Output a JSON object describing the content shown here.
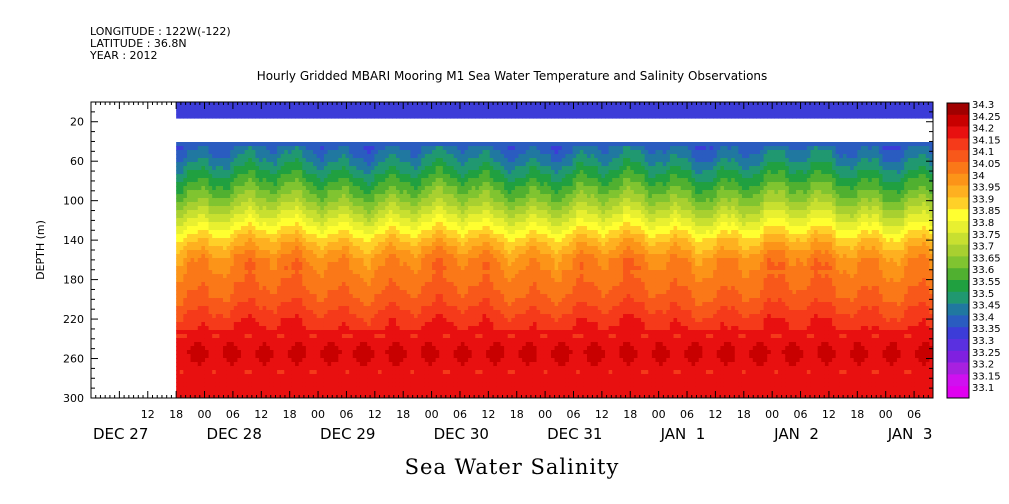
{
  "header": {
    "longitude": "LONGITUDE : 122W(-122)",
    "latitude": "LATITUDE : 36.8N",
    "year": "YEAR : 2012"
  },
  "chart_data": {
    "type": "heatmap",
    "title": "Hourly Gridded MBARI Mooring M1 Sea Water Temperature and Salinity Observations",
    "variable_title": "Sea Water Salinity",
    "ylabel": "DEPTH (m)",
    "y_axis": {
      "range": [
        0,
        300
      ],
      "inverted": true,
      "ticks": [
        20,
        60,
        100,
        140,
        180,
        220,
        260,
        300
      ]
    },
    "x_axis": {
      "hour_ticks": [
        "12",
        "18",
        "00",
        "06",
        "12",
        "18",
        "00",
        "06",
        "12",
        "18",
        "00",
        "06",
        "12",
        "18",
        "00",
        "06",
        "12",
        "18",
        "00",
        "06",
        "12",
        "18",
        "00",
        "06",
        "12",
        "18",
        "00",
        "06"
      ],
      "hour_tick_hours": [
        12,
        18,
        24,
        30,
        36,
        42,
        48,
        54,
        60,
        66,
        72,
        78,
        84,
        90,
        96,
        102,
        108,
        114,
        120,
        126,
        132,
        138,
        144,
        150,
        156,
        162,
        168,
        174
      ],
      "day_labels": [
        {
          "text": "DEC 27",
          "hour": 0
        },
        {
          "text": "DEC 28",
          "hour": 24
        },
        {
          "text": "DEC 29",
          "hour": 48
        },
        {
          "text": "DEC 30",
          "hour": 72
        },
        {
          "text": "DEC 31",
          "hour": 96
        },
        {
          "text": "JAN  1",
          "hour": 120
        },
        {
          "text": "JAN  2",
          "hour": 144
        },
        {
          "text": "JAN  3",
          "hour": 168
        }
      ],
      "data_start_hour": 18,
      "range_hours": [
        0,
        178
      ]
    },
    "colorbar": {
      "levels": [
        "34.3",
        "34.25",
        "34.2",
        "34.15",
        "34.1",
        "34.05",
        "34",
        "33.95",
        "33.9",
        "33.85",
        "33.8",
        "33.75",
        "33.7",
        "33.65",
        "33.6",
        "33.55",
        "33.5",
        "33.45",
        "33.4",
        "33.35",
        "33.3",
        "33.25",
        "33.2",
        "33.15",
        "33.1"
      ],
      "colors": [
        "#a00000",
        "#c80000",
        "#e81010",
        "#f53a1a",
        "#f8581a",
        "#fa7818",
        "#fc9418",
        "#feb020",
        "#ffd028",
        "#ffff30",
        "#e8f030",
        "#c8e030",
        "#a8d030",
        "#80c430",
        "#50b030",
        "#20a040",
        "#209870",
        "#2078a0",
        "#2a5cc0",
        "#3c3cd8",
        "#5a30e0",
        "#8020e0",
        "#a820e0",
        "#d010f0",
        "#e000f0"
      ]
    },
    "profile": [
      {
        "depth": 12,
        "salinity": 33.35
      },
      {
        "depth": 40,
        "salinity": 33.42
      },
      {
        "depth": 60,
        "salinity": 33.5
      },
      {
        "depth": 80,
        "salinity": 33.6
      },
      {
        "depth": 100,
        "salinity": 33.7
      },
      {
        "depth": 120,
        "salinity": 33.82
      },
      {
        "depth": 140,
        "salinity": 33.95
      },
      {
        "depth": 160,
        "salinity": 34.05
      },
      {
        "depth": 180,
        "salinity": 34.08
      },
      {
        "depth": 200,
        "salinity": 34.12
      },
      {
        "depth": 220,
        "salinity": 34.18
      },
      {
        "depth": 240,
        "salinity": 34.22
      },
      {
        "depth": 255,
        "salinity": 34.26
      },
      {
        "depth": 270,
        "salinity": 34.22
      },
      {
        "depth": 300,
        "salinity": 34.2
      }
    ],
    "missing_depth_band": [
      16,
      40
    ]
  }
}
